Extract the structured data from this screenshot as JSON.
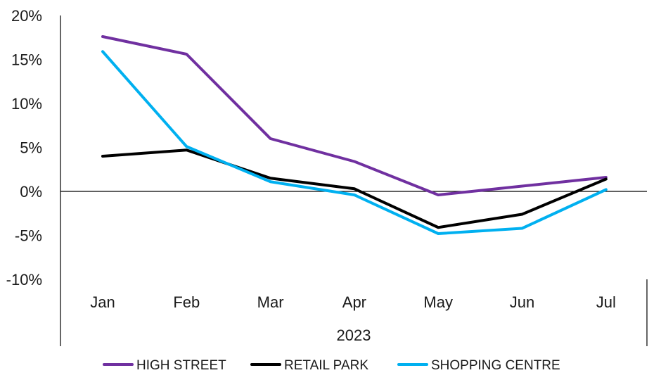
{
  "chart_data": {
    "type": "line",
    "categories": [
      "Jan",
      "Feb",
      "Mar",
      "Apr",
      "May",
      "Jun",
      "Jul"
    ],
    "category_group": "2023",
    "ylim": [
      -10,
      20
    ],
    "yticks": [
      -10,
      -5,
      0,
      5,
      10,
      15,
      20
    ],
    "ytick_labels": [
      "-10%",
      "-5%",
      "0%",
      "5%",
      "10%",
      "15%",
      "20%"
    ],
    "grid": false,
    "legend_position": "bottom",
    "series": [
      {
        "name": "HIGH STREET",
        "color": "#7030A0",
        "values": [
          17.6,
          15.6,
          6.0,
          3.4,
          -0.4,
          0.6,
          1.6
        ]
      },
      {
        "name": "RETAIL PARK",
        "color": "#000000",
        "values": [
          4.0,
          4.7,
          1.5,
          0.3,
          -4.1,
          -2.6,
          1.4
        ]
      },
      {
        "name": "SHOPPING CENTRE",
        "color": "#00B0F0",
        "values": [
          15.9,
          5.1,
          1.1,
          -0.4,
          -4.8,
          -4.2,
          0.2
        ]
      }
    ]
  }
}
